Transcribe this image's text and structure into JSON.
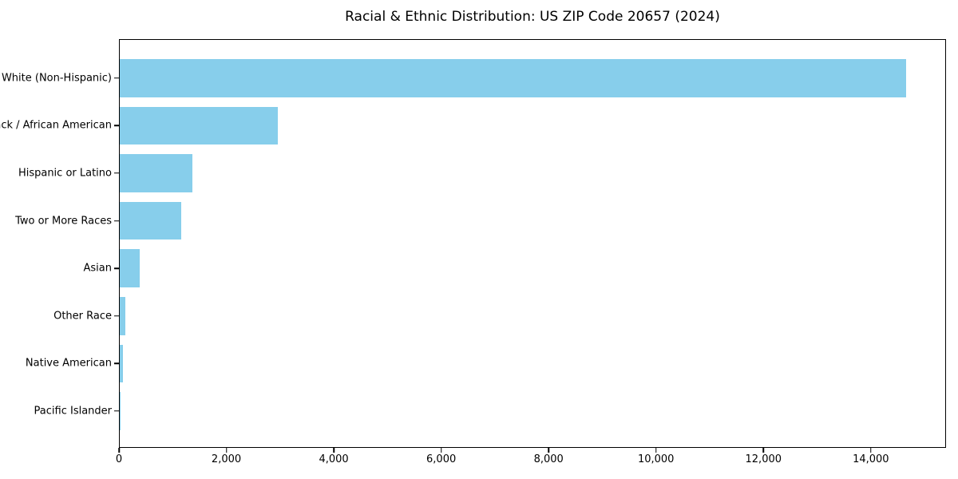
{
  "chart_data": {
    "type": "bar",
    "orientation": "horizontal",
    "title": "Racial & Ethnic Distribution: US ZIP Code 20657 (2024)",
    "categories": [
      "White (Non-Hispanic)",
      "Black / African American",
      "Hispanic or Latino",
      "Two or More Races",
      "Asian",
      "Other Race",
      "Native American",
      "Pacific Islander"
    ],
    "values": [
      14670,
      2950,
      1350,
      1150,
      370,
      100,
      55,
      5
    ],
    "xlabel": "",
    "ylabel": "",
    "xlim": [
      0,
      15400
    ],
    "x_tick_values": [
      0,
      2000,
      4000,
      6000,
      8000,
      10000,
      12000,
      14000
    ],
    "x_tick_labels": [
      "0",
      "2,000",
      "4,000",
      "6,000",
      "8,000",
      "10,000",
      "12,000",
      "14,000"
    ],
    "bar_color": "#87CEEB",
    "axis_color": "#000000",
    "text_color": "#000000",
    "background_color": "#FFFFFF",
    "grid": false,
    "legend": null
  }
}
